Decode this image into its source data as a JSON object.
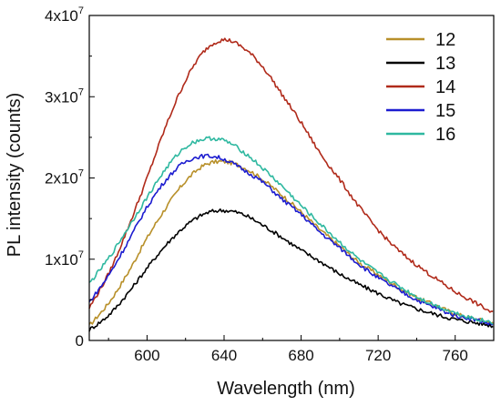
{
  "chart_data": {
    "type": "line",
    "title": "",
    "xlabel": "Wavelength (nm)",
    "ylabel": "PL intensity (counts)",
    "xlim": [
      570,
      780
    ],
    "ylim": [
      0,
      40000000
    ],
    "x_ticks": [
      600,
      640,
      680,
      720,
      760
    ],
    "x_tick_labels": [
      "600",
      "640",
      "680",
      "720",
      "760"
    ],
    "y_ticks": [
      {
        "value": 0,
        "base": "0",
        "exp": ""
      },
      {
        "value": 10000000,
        "base": "1x10",
        "exp": "7"
      },
      {
        "value": 20000000,
        "base": "2x10",
        "exp": "7"
      },
      {
        "value": 30000000,
        "base": "3x10",
        "exp": "7"
      },
      {
        "value": 40000000,
        "base": "4x10",
        "exp": "7"
      }
    ],
    "grid": false,
    "legend_position": "top-right",
    "x": [
      570,
      580,
      590,
      600,
      610,
      620,
      630,
      640,
      650,
      660,
      670,
      680,
      690,
      700,
      710,
      720,
      730,
      740,
      750,
      760,
      770,
      780
    ],
    "series": [
      {
        "name": "12",
        "color": "#B8902A",
        "values": [
          1800000,
          4600000,
          8300000,
          12600000,
          16400000,
          19600000,
          21600000,
          22000000,
          21300000,
          19800000,
          17900000,
          15800000,
          13600000,
          11600000,
          9600000,
          8100000,
          6600000,
          5300000,
          4300000,
          3300000,
          2700000,
          2100000
        ]
      },
      {
        "name": "13",
        "color": "#000000",
        "values": [
          1300000,
          3100000,
          5800000,
          8900000,
          11800000,
          14100000,
          15600000,
          16000000,
          15500000,
          14200000,
          12700000,
          11100000,
          9700000,
          8200000,
          6900000,
          5800000,
          4700000,
          3900000,
          3200000,
          2600000,
          2200000,
          1800000
        ]
      },
      {
        "name": "14",
        "color": "#B02A1A",
        "values": [
          4000000,
          8200000,
          13800000,
          20000000,
          26500000,
          32000000,
          35700000,
          37000000,
          36000000,
          33700000,
          30300000,
          26800000,
          23000000,
          19800000,
          16500000,
          13600000,
          11200000,
          9300000,
          7600000,
          6000000,
          4700000,
          3300000
        ]
      },
      {
        "name": "15",
        "color": "#1C1CD0",
        "values": [
          4700000,
          8000000,
          12100000,
          16400000,
          19800000,
          22000000,
          22700000,
          22300000,
          21000000,
          19500000,
          17400000,
          15500000,
          13300000,
          11400000,
          9400000,
          7700000,
          6300000,
          5000000,
          4000000,
          3100000,
          2600000,
          1900000
        ]
      },
      {
        "name": "16",
        "color": "#2EB8A0",
        "values": [
          7000000,
          10100000,
          13800000,
          17600000,
          21200000,
          23800000,
          24800000,
          24600000,
          23200000,
          21200000,
          19000000,
          16600000,
          14300000,
          12100000,
          10000000,
          8300000,
          6800000,
          5400000,
          4300000,
          3400000,
          2700000,
          2200000
        ]
      }
    ]
  }
}
